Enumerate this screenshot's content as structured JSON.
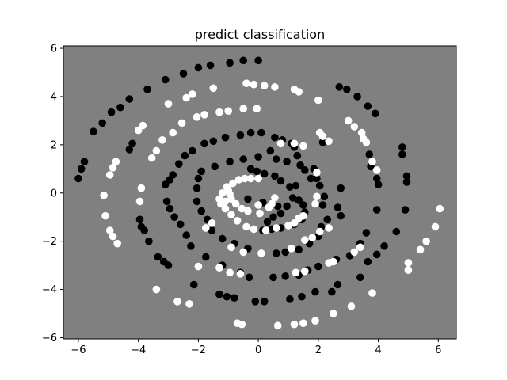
{
  "chart_data": {
    "type": "scatter",
    "title": "predict classification",
    "xlabel": "",
    "ylabel": "",
    "xlim": [
      -6.5,
      6.6
    ],
    "ylim": [
      -6.05,
      6.1
    ],
    "xticks": [
      -6,
      -4,
      -2,
      0,
      2,
      4,
      6
    ],
    "yticks": [
      -6,
      -4,
      -2,
      0,
      2,
      4,
      6
    ],
    "xtick_labels": [
      "−6",
      "−4",
      "−2",
      "0",
      "2",
      "4",
      "6"
    ],
    "ytick_labels": [
      "−6",
      "−4",
      "−2",
      "0",
      "2",
      "4",
      "6"
    ],
    "background_color": "#808080",
    "grid": false,
    "legend": "none",
    "series": [
      {
        "color": "#000000",
        "points": [
          [
            -0.5,
            5.5
          ],
          [
            0.0,
            5.5
          ],
          [
            -0.95,
            5.4
          ],
          [
            -1.6,
            5.3
          ],
          [
            -2.0,
            5.2
          ],
          [
            -2.5,
            4.95
          ],
          [
            -3.1,
            4.7
          ],
          [
            -3.7,
            4.3
          ],
          [
            -4.3,
            3.9
          ],
          [
            -4.6,
            3.55
          ],
          [
            -4.9,
            3.35
          ],
          [
            -5.2,
            2.9
          ],
          [
            -5.5,
            2.55
          ],
          [
            -5.8,
            1.3
          ],
          [
            -5.9,
            1.0
          ],
          [
            -6.0,
            0.6
          ],
          [
            -4.3,
            1.8
          ],
          [
            -4.2,
            2.05
          ],
          [
            -3.95,
            -1.1
          ],
          [
            -3.9,
            -1.4
          ],
          [
            -3.8,
            -1.55
          ],
          [
            -3.65,
            -2.0
          ],
          [
            -3.35,
            -2.65
          ],
          [
            -3.15,
            -2.85
          ],
          [
            -3.0,
            -3.0
          ],
          [
            -2.15,
            -3.8
          ],
          [
            -1.3,
            -4.2
          ],
          [
            -1.05,
            -4.3
          ],
          [
            -0.8,
            -4.35
          ],
          [
            -0.1,
            -4.5
          ],
          [
            0.2,
            -4.5
          ],
          [
            1.05,
            -4.4
          ],
          [
            1.45,
            -4.3
          ],
          [
            1.9,
            -4.1
          ],
          [
            2.45,
            -4.1
          ],
          [
            2.65,
            -3.8
          ],
          [
            3.4,
            -3.5
          ],
          [
            3.65,
            -2.85
          ],
          [
            3.95,
            -2.55
          ],
          [
            4.2,
            -2.2
          ],
          [
            4.6,
            -1.6
          ],
          [
            4.9,
            -0.7
          ],
          [
            4.95,
            0.45
          ],
          [
            4.95,
            0.7
          ],
          [
            4.8,
            1.6
          ],
          [
            4.8,
            1.9
          ],
          [
            3.9,
            3.3
          ],
          [
            3.65,
            3.6
          ],
          [
            3.3,
            4.0
          ],
          [
            2.95,
            4.3
          ],
          [
            2.7,
            4.4
          ],
          [
            2.15,
            2.1
          ],
          [
            1.85,
            1.0
          ],
          [
            1.75,
            0.6
          ],
          [
            1.4,
            1.15
          ],
          [
            1.3,
            1.55
          ],
          [
            1.2,
            1.9
          ],
          [
            1.1,
            2.05
          ],
          [
            0.8,
            2.2
          ],
          [
            0.55,
            2.3
          ],
          [
            0.1,
            2.5
          ],
          [
            -0.25,
            2.5
          ],
          [
            -0.6,
            2.4
          ],
          [
            -1.1,
            2.3
          ],
          [
            -1.5,
            2.15
          ],
          [
            -1.8,
            2.05
          ],
          [
            -2.2,
            1.75
          ],
          [
            -2.45,
            1.55
          ],
          [
            -2.65,
            1.2
          ],
          [
            -2.85,
            0.75
          ],
          [
            -2.95,
            0.55
          ],
          [
            -3.1,
            0.35
          ],
          [
            -3.05,
            -0.35
          ],
          [
            -2.95,
            -0.65
          ],
          [
            -2.8,
            -1.0
          ],
          [
            -2.6,
            -1.3
          ],
          [
            -2.4,
            -1.75
          ],
          [
            -2.25,
            -2.2
          ],
          [
            -1.75,
            -2.65
          ],
          [
            -1.2,
            -3.0
          ],
          [
            -0.6,
            -3.3
          ],
          [
            -0.3,
            -3.5
          ],
          [
            0.5,
            -3.5
          ],
          [
            0.9,
            -3.45
          ],
          [
            1.35,
            -3.4
          ],
          [
            1.65,
            -3.2
          ],
          [
            2.0,
            -3.05
          ],
          [
            2.6,
            -2.75
          ],
          [
            3.05,
            -2.6
          ],
          [
            3.4,
            -2.1
          ],
          [
            3.6,
            -1.65
          ],
          [
            3.95,
            -0.7
          ],
          [
            4.0,
            0.35
          ],
          [
            3.95,
            0.6
          ],
          [
            3.75,
            1.1
          ],
          [
            3.7,
            1.6
          ],
          [
            2.75,
            0.2
          ],
          [
            2.65,
            -0.6
          ],
          [
            2.75,
            -0.95
          ],
          [
            1.55,
            0.95
          ],
          [
            0.95,
            1.3
          ],
          [
            0.6,
            1.4
          ],
          [
            0.4,
            1.75
          ],
          [
            0.0,
            1.5
          ],
          [
            -0.5,
            1.4
          ],
          [
            -0.95,
            1.3
          ],
          [
            -1.45,
            1.1
          ],
          [
            -1.9,
            0.9
          ],
          [
            -2.0,
            0.6
          ],
          [
            -2.05,
            0.2
          ],
          [
            -2.05,
            -0.35
          ],
          [
            -1.9,
            -0.75
          ],
          [
            -1.7,
            -1.1
          ],
          [
            -1.55,
            -1.55
          ],
          [
            -1.2,
            -1.9
          ],
          [
            -0.8,
            -2.1
          ],
          [
            -0.35,
            -2.3
          ],
          [
            0.6,
            -2.5
          ],
          [
            0.9,
            -2.45
          ],
          [
            1.35,
            -2.35
          ],
          [
            1.7,
            -2.1
          ],
          [
            2.0,
            -1.8
          ],
          [
            2.1,
            -1.4
          ],
          [
            2.3,
            -1.1
          ],
          [
            2.15,
            -0.5
          ],
          [
            2.2,
            -0.15
          ],
          [
            2.05,
            0.3
          ],
          [
            1.95,
            0.6
          ],
          [
            1.25,
            0.3
          ],
          [
            1.05,
            0.25
          ],
          [
            0.75,
            0.5
          ],
          [
            0.55,
            0.7
          ],
          [
            0.2,
            0.8
          ],
          [
            -0.05,
            0.9
          ],
          [
            -0.25,
            1.0
          ],
          [
            0.95,
            -0.55
          ],
          [
            0.75,
            -0.85
          ],
          [
            0.5,
            -1.0
          ],
          [
            0.3,
            -1.2
          ],
          [
            0.15,
            -1.55
          ],
          [
            0.45,
            -1.5
          ],
          [
            0.75,
            -1.45
          ],
          [
            1.2,
            -1.3
          ],
          [
            1.45,
            -1.1
          ],
          [
            1.55,
            -0.8
          ],
          [
            1.5,
            -0.5
          ],
          [
            1.35,
            -0.3
          ],
          [
            1.15,
            -0.2
          ],
          [
            -0.35,
            -0.25
          ],
          [
            0.15,
            -0.4
          ],
          [
            0.65,
            -0.55
          ]
        ]
      },
      {
        "color": "#ffffff",
        "points": [
          [
            -0.4,
            4.55
          ],
          [
            -0.15,
            4.5
          ],
          [
            0.2,
            4.45
          ],
          [
            0.55,
            4.4
          ],
          [
            1.2,
            4.3
          ],
          [
            1.35,
            4.2
          ],
          [
            2.0,
            3.85
          ],
          [
            3.0,
            3.0
          ],
          [
            3.2,
            2.75
          ],
          [
            3.45,
            2.5
          ],
          [
            3.5,
            2.25
          ],
          [
            3.6,
            2.1
          ],
          [
            3.8,
            1.3
          ],
          [
            3.95,
            0.95
          ],
          [
            5.0,
            -2.9
          ],
          [
            5.4,
            -2.35
          ],
          [
            5.6,
            -2.0
          ],
          [
            5.9,
            -1.4
          ],
          [
            6.05,
            -0.65
          ],
          [
            5.0,
            -3.2
          ],
          [
            3.8,
            -4.15
          ],
          [
            3.1,
            -4.7
          ],
          [
            2.5,
            -5.0
          ],
          [
            1.9,
            -5.3
          ],
          [
            1.5,
            -5.4
          ],
          [
            1.2,
            -5.45
          ],
          [
            0.65,
            -5.5
          ],
          [
            -0.7,
            -5.4
          ],
          [
            -0.55,
            -5.45
          ],
          [
            -2.3,
            -4.6
          ],
          [
            -2.7,
            -4.5
          ],
          [
            -3.4,
            -4.0
          ],
          [
            -4.7,
            -2.1
          ],
          [
            -4.85,
            -1.8
          ],
          [
            -4.95,
            -1.55
          ],
          [
            -5.1,
            -0.95
          ],
          [
            -5.15,
            -0.1
          ],
          [
            -4.95,
            0.75
          ],
          [
            -4.85,
            1.05
          ],
          [
            -4.75,
            1.3
          ],
          [
            -4.0,
            2.6
          ],
          [
            -3.85,
            2.8
          ],
          [
            -3.55,
            1.45
          ],
          [
            -3.4,
            1.75
          ],
          [
            -3.2,
            2.2
          ],
          [
            -2.85,
            2.5
          ],
          [
            -2.55,
            2.9
          ],
          [
            -2.05,
            3.15
          ],
          [
            -1.8,
            3.25
          ],
          [
            -1.3,
            3.35
          ],
          [
            -1.0,
            3.4
          ],
          [
            -0.5,
            3.5
          ],
          [
            -0.05,
            3.5
          ],
          [
            -3.0,
            3.7
          ],
          [
            -2.4,
            3.95
          ],
          [
            -2.2,
            4.1
          ],
          [
            -1.5,
            4.35
          ],
          [
            -3.9,
            0.2
          ],
          [
            -3.95,
            -0.35
          ],
          [
            -1.75,
            -1.45
          ],
          [
            -1.55,
            -1.25
          ],
          [
            -2.0,
            -3.05
          ],
          [
            -1.3,
            -3.1
          ],
          [
            -0.95,
            -3.3
          ],
          [
            -0.6,
            -3.35
          ],
          [
            -0.9,
            -2.25
          ],
          [
            -0.5,
            -2.45
          ],
          [
            0.1,
            -2.5
          ],
          [
            1.1,
            -2.3
          ],
          [
            1.55,
            -1.95
          ],
          [
            1.8,
            -1.85
          ],
          [
            2.05,
            -1.6
          ],
          [
            2.35,
            -1.45
          ],
          [
            1.25,
            -3.3
          ],
          [
            1.55,
            -3.25
          ],
          [
            2.35,
            -2.9
          ],
          [
            2.5,
            -2.85
          ],
          [
            3.2,
            -2.45
          ],
          [
            3.4,
            -2.25
          ],
          [
            2.05,
            2.5
          ],
          [
            2.15,
            2.35
          ],
          [
            2.35,
            2.15
          ],
          [
            1.5,
            1.95
          ],
          [
            1.2,
            2.05
          ],
          [
            0.75,
            2.05
          ],
          [
            1.95,
            0.85
          ],
          [
            1.95,
            -0.15
          ],
          [
            1.9,
            -0.45
          ],
          [
            1.5,
            -0.95
          ],
          [
            1.35,
            -1.05
          ],
          [
            1.2,
            -1.25
          ],
          [
            1.0,
            -1.35
          ],
          [
            0.6,
            -1.45
          ],
          [
            0.25,
            -1.55
          ],
          [
            -0.15,
            -1.5
          ],
          [
            -0.4,
            -1.4
          ],
          [
            -0.7,
            -1.15
          ],
          [
            -0.9,
            -0.9
          ],
          [
            -1.1,
            -0.65
          ],
          [
            -1.25,
            -0.45
          ],
          [
            -1.3,
            -0.25
          ],
          [
            -1.2,
            0.0
          ],
          [
            -1.05,
            0.25
          ],
          [
            -0.85,
            0.4
          ],
          [
            -0.65,
            0.55
          ],
          [
            -0.45,
            0.6
          ],
          [
            -0.25,
            0.6
          ],
          [
            0.0,
            0.6
          ],
          [
            -1.1,
            -0.35
          ],
          [
            -1.0,
            0.1
          ],
          [
            -0.95,
            -0.05
          ],
          [
            -0.9,
            -0.25
          ],
          [
            -0.75,
            -0.45
          ],
          [
            -0.55,
            -0.65
          ],
          [
            -0.35,
            -0.75
          ],
          [
            0.05,
            -0.85
          ],
          [
            0.35,
            -0.6
          ],
          [
            0.45,
            -0.45
          ],
          [
            0.55,
            -0.2
          ],
          [
            0.0,
            -0.5
          ]
        ]
      }
    ]
  }
}
